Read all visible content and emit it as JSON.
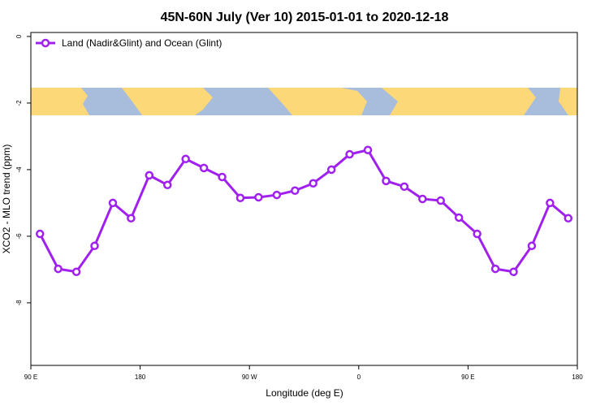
{
  "chart_data": {
    "type": "line",
    "title": "45N-60N July (Ver 10)   2015-01-01 to 2020-12-18",
    "x_label": "Longitude (deg E)",
    "y_label": "XCO2 - MLO trend (ppm)",
    "x": [
      97.5,
      112.5,
      127.5,
      142.5,
      157.5,
      172.5,
      187.5,
      202.5,
      217.5,
      232.5,
      247.5,
      262.5,
      277.5,
      292.5,
      307.5,
      322.5,
      337.5,
      352.5,
      367.5,
      382.5,
      397.5,
      412.5,
      427.5,
      442.5,
      457.5,
      472.5,
      487.5,
      502.5,
      517.5,
      532.5
    ],
    "series": [
      {
        "name": "Land (Nadir&Glint) and Ocean (Glint)",
        "color": "#a020f0",
        "values": [
          -5.93,
          -6.98,
          -7.07,
          -6.29,
          -5.0,
          -5.46,
          -4.17,
          -4.46,
          -3.68,
          -3.95,
          -4.22,
          -4.85,
          -4.83,
          -4.76,
          -4.63,
          -4.41,
          -4.0,
          -3.54,
          -3.41,
          -4.34,
          -4.51,
          -4.88,
          -4.93,
          -5.44,
          -5.93,
          -6.98,
          -7.07,
          -6.29,
          -5.0,
          -5.46
        ]
      }
    ],
    "xlim": [
      90,
      540
    ],
    "ylim": [
      -9.88,
      0.12
    ],
    "xticks": [
      {
        "value": 90,
        "label": "90 E"
      },
      180,
      {
        "value": 270,
        "label": "90 W"
      },
      {
        "value": 360,
        "label": "0"
      },
      {
        "value": 450,
        "label": "90 E"
      },
      {
        "value": 540,
        "label": "180"
      }
    ],
    "yticks": [
      0,
      -2,
      -4,
      -6,
      -8
    ],
    "legend": "top-left"
  }
}
